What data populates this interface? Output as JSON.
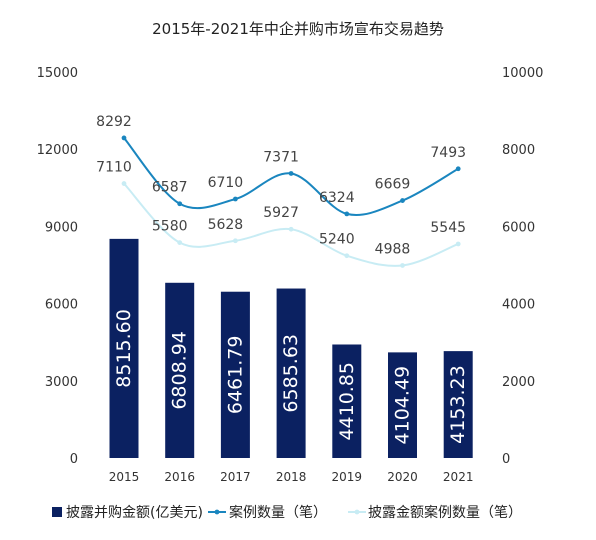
{
  "chart_data": {
    "type": "bar",
    "title": "2015年-2021年中企并购市场宣布交易趋势",
    "categories": [
      "2015",
      "2016",
      "2017",
      "2018",
      "2019",
      "2020",
      "2021"
    ],
    "series": [
      {
        "name": "披露并购金额(亿美元)",
        "type": "bar",
        "axis": "left",
        "color": "#0b2161",
        "values": [
          8515.6,
          6808.94,
          6461.79,
          6585.63,
          4410.85,
          4104.49,
          4153.23
        ],
        "labels": [
          "8515.60",
          "6808.94",
          "6461.79",
          "6585.63",
          "4410.85",
          "4104.49",
          "4153.23"
        ]
      },
      {
        "name": "案例数量（笔）",
        "type": "line",
        "axis": "right",
        "color": "#1a86bf",
        "values": [
          8292,
          6587,
          6710,
          7371,
          6324,
          6669,
          7493
        ]
      },
      {
        "name": "披露金额案例数量（笔）",
        "type": "line",
        "axis": "right",
        "color": "#c8ecf4",
        "values": [
          7110,
          5580,
          5628,
          5927,
          5240,
          4988,
          5545
        ]
      }
    ],
    "y_left": {
      "min": 0,
      "max": 15000,
      "ticks": [
        0,
        3000,
        6000,
        9000,
        12000,
        15000
      ]
    },
    "y_right": {
      "min": 0,
      "max": 10000,
      "ticks": [
        0,
        2000,
        4000,
        6000,
        8000,
        10000
      ]
    },
    "grid": false,
    "legend": "bottom"
  }
}
